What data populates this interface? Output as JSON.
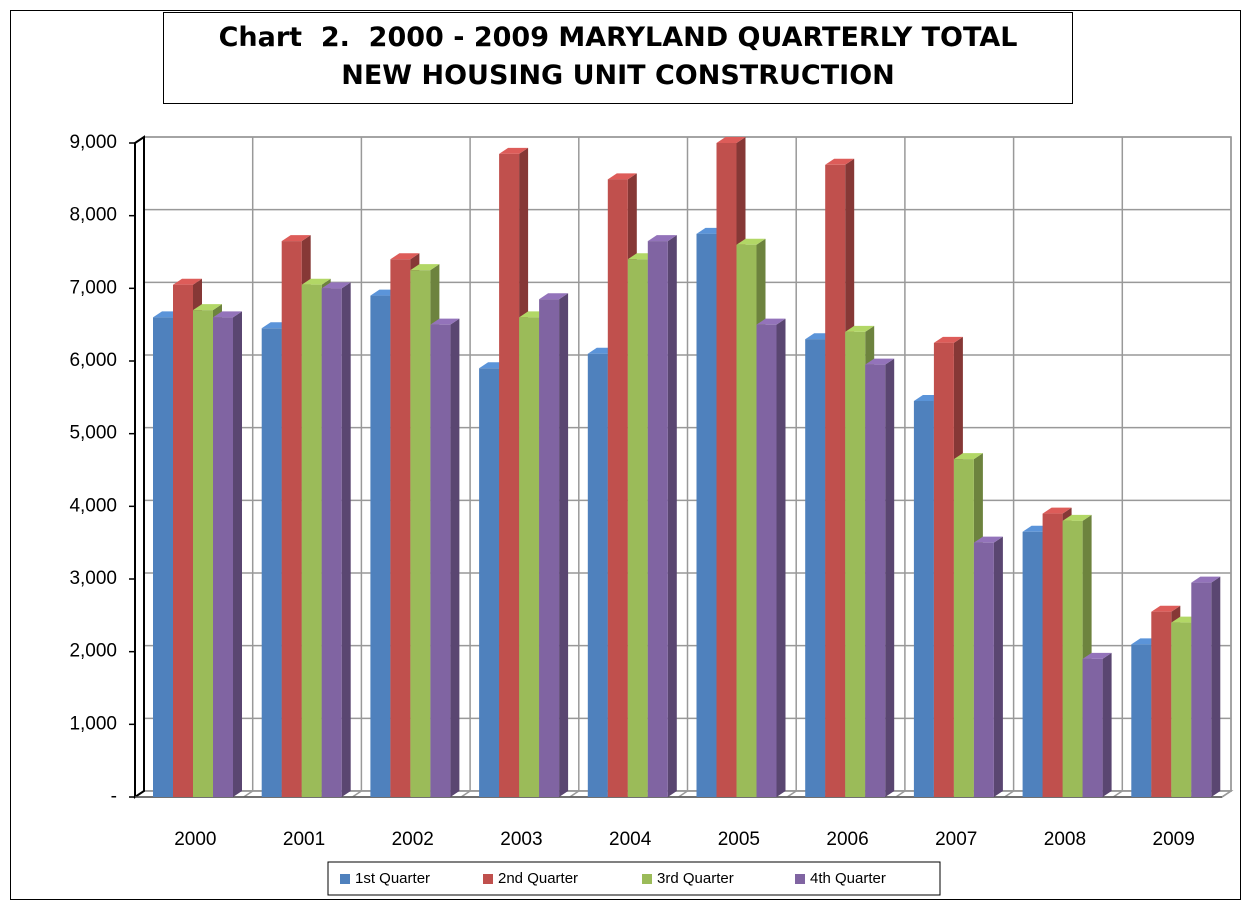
{
  "chart_data": {
    "type": "bar",
    "title": "Chart  2.  2000 - 2009 MARYLAND QUARTERLY TOTAL NEW HOUSING UNIT CONSTRUCTION",
    "categories": [
      "2000",
      "2001",
      "2002",
      "2003",
      "2004",
      "2005",
      "2006",
      "2007",
      "2008",
      "2009"
    ],
    "series": [
      {
        "name": "1st Quarter",
        "color": "#4f81bd",
        "values": [
          6600,
          6450,
          6900,
          5900,
          6100,
          7750,
          6300,
          5450,
          3650,
          2100
        ]
      },
      {
        "name": "2nd Quarter",
        "color": "#c0504d",
        "values": [
          7050,
          7650,
          7400,
          8850,
          8500,
          9000,
          8700,
          6250,
          3900,
          2550
        ]
      },
      {
        "name": "3rd Quarter",
        "color": "#9bbb59",
        "values": [
          6700,
          7050,
          7250,
          6600,
          7400,
          7600,
          6400,
          4650,
          3800,
          2400
        ]
      },
      {
        "name": "4th Quarter",
        "color": "#8064a2",
        "values": [
          6600,
          7000,
          6500,
          6850,
          7650,
          6500,
          5950,
          3500,
          1900,
          2950
        ]
      }
    ],
    "ylim": [
      0,
      9000
    ],
    "yticks": [
      {
        "value": 0,
        "label": "-"
      },
      {
        "value": 1000,
        "label": "1,000"
      },
      {
        "value": 2000,
        "label": "2,000"
      },
      {
        "value": 3000,
        "label": "3,000"
      },
      {
        "value": 4000,
        "label": "4,000"
      },
      {
        "value": 5000,
        "label": "5,000"
      },
      {
        "value": 6000,
        "label": "6,000"
      },
      {
        "value": 7000,
        "label": "7,000"
      },
      {
        "value": 8000,
        "label": "8,000"
      },
      {
        "value": 9000,
        "label": "9,000"
      }
    ],
    "grid": true,
    "legend": "bottom"
  }
}
